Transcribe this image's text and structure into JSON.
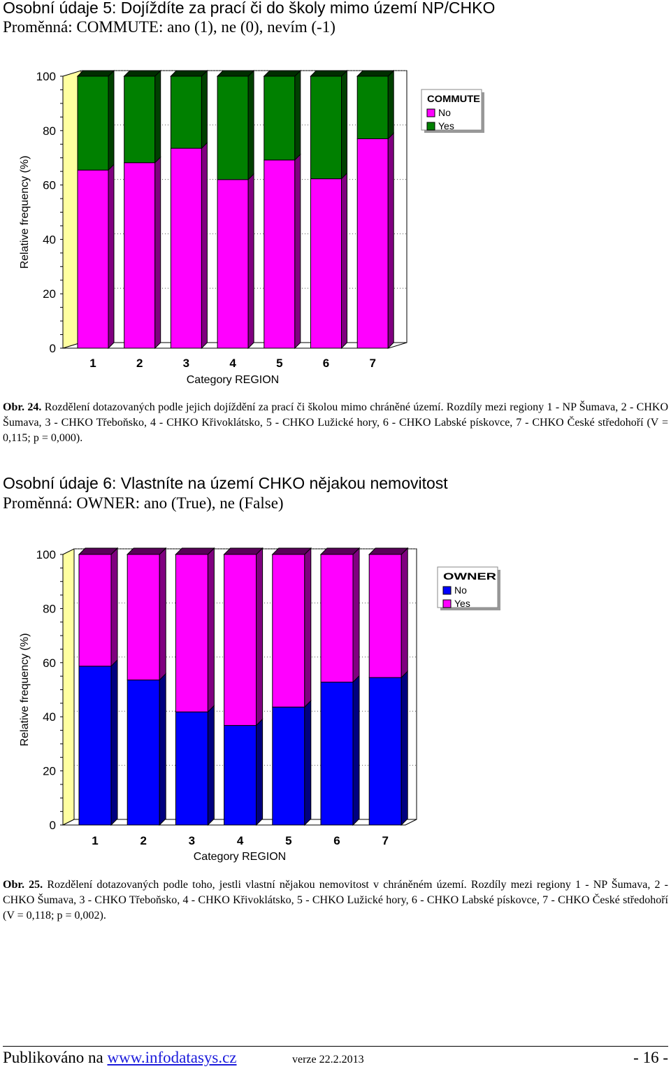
{
  "sections": [
    {
      "heading": "Osobní údaje 5: Dojíždíte za prací či do školy mimo území NP/CHKO",
      "subheading": "Proměnná: COMMUTE: ano (1), ne (0), nevím (-1)",
      "caption_prefix": "Obr. 24.",
      "caption": "Rozdělení dotazovaných podle jejich dojíždění za prací či školou mimo chráněné území. Rozdíly mezi regiony 1 - NP Šumava, 2 - CHKO Šumava, 3 - CHKO Třeboňsko, 4 - CHKO Křivoklátsko, 5 - CHKO Lužické hory, 6 - CHKO Labské pískovce, 7 - CHKO České středohoří (V = 0,115; p = 0,000)."
    },
    {
      "heading": "Osobní údaje 6: Vlastníte na území CHKO nějakou nemovitost",
      "subheading": "Proměnná: OWNER: ano (True), ne (False)",
      "caption_prefix": "Obr. 25.",
      "caption": "Rozdělení dotazovaných podle toho, jestli vlastní nějakou nemovitost v chráněném území. Rozdíly mezi regiony 1 - NP Šumava, 2 - CHKO Šumava, 3 - CHKO Třeboňsko, 4 - CHKO Křivoklátsko, 5 - CHKO Lužické hory, 6 - CHKO Labské pískovce, 7 - CHKO České středohoří (V = 0,118; p = 0,002)."
    }
  ],
  "chart_data": [
    {
      "type": "bar",
      "stacked": true,
      "three_d": true,
      "categories": [
        "1",
        "2",
        "3",
        "4",
        "5",
        "6",
        "7"
      ],
      "xlabel": "Category REGION",
      "ylabel": "Relative frequency (%)",
      "ylim": [
        0,
        100
      ],
      "yticks": [
        0,
        20,
        40,
        60,
        80,
        100
      ],
      "legend_title": "COMMUTE",
      "legend_position": "top-right",
      "series": [
        {
          "name": "No",
          "color": "#ff00ff",
          "values": [
            65.5,
            68.2,
            73.5,
            62.0,
            69.2,
            62.3,
            77.0
          ]
        },
        {
          "name": "Yes",
          "color": "#008000",
          "values": [
            34.5,
            31.8,
            26.5,
            38.0,
            30.8,
            37.7,
            23.0
          ]
        }
      ]
    },
    {
      "type": "bar",
      "stacked": true,
      "three_d": true,
      "categories": [
        "1",
        "2",
        "3",
        "4",
        "5",
        "6",
        "7"
      ],
      "xlabel": "Category REGION",
      "ylabel": "Relative frequency (%)",
      "ylim": [
        0,
        100
      ],
      "yticks": [
        0,
        20,
        40,
        60,
        80,
        100
      ],
      "legend_title": "OWNER",
      "legend_position": "top-right",
      "series": [
        {
          "name": "No",
          "color": "#0000ff",
          "values": [
            58.7,
            53.6,
            41.8,
            36.8,
            43.6,
            52.8,
            54.5
          ]
        },
        {
          "name": "Yes",
          "color": "#ff00ff",
          "values": [
            41.3,
            46.4,
            58.2,
            63.2,
            56.4,
            47.2,
            45.5
          ]
        }
      ]
    }
  ],
  "footer": {
    "published_label": "Publikováno na",
    "link_text": "www.infodatasys.cz",
    "version": "verze 22.2.2013",
    "page_number": "- 16 -"
  }
}
